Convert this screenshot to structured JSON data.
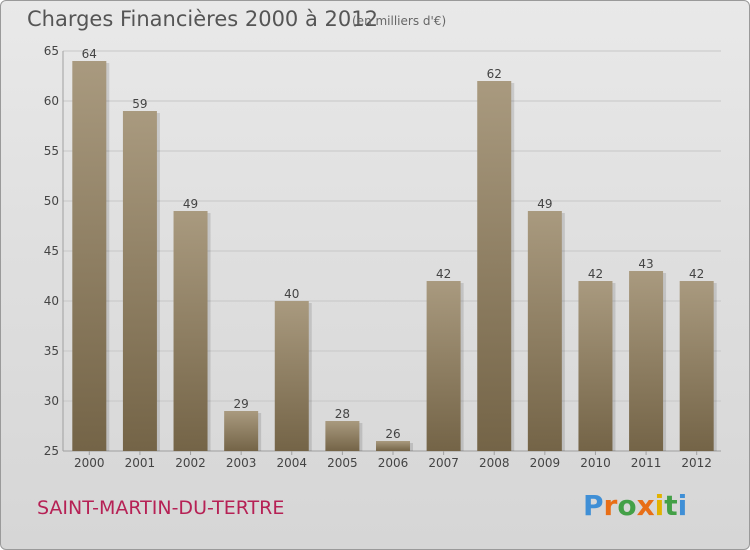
{
  "header": {
    "title": "Charges Financières 2000 à 2012",
    "subtitle": "(en milliers d'€)"
  },
  "footer": {
    "place": "SAINT-MARTIN-DU-TERTRE",
    "logo": "Proxiti"
  },
  "colors": {
    "bar_top": "#a99a7f",
    "bar_bottom": "#746447",
    "grid": "#c7c7c7",
    "axis_text": "#444444",
    "place": "#b62155"
  },
  "chart_data": {
    "type": "bar",
    "categories": [
      "2000",
      "2001",
      "2002",
      "2003",
      "2004",
      "2005",
      "2006",
      "2007",
      "2008",
      "2009",
      "2010",
      "2011",
      "2012"
    ],
    "values": [
      64,
      59,
      49,
      29,
      40,
      28,
      26,
      42,
      62,
      49,
      42,
      43,
      42
    ],
    "title": "Charges Financières 2000 à 2012",
    "subtitle": "(en milliers d'€)",
    "xlabel": "",
    "ylabel": "",
    "ylim": [
      25,
      65
    ],
    "yticks": [
      25,
      30,
      35,
      40,
      45,
      50,
      55,
      60,
      65
    ],
    "grid": true,
    "data_labels": true
  }
}
